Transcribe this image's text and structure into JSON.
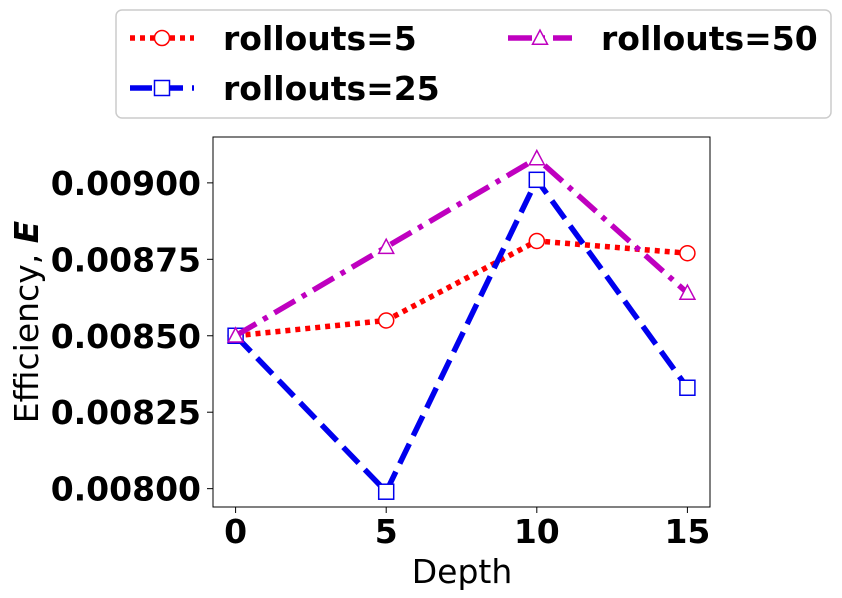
{
  "chart_data": {
    "type": "line",
    "xlabel": "Depth",
    "ylabel_prefix": "Efficiency, ",
    "ylabel_symbol": "E",
    "x": [
      0,
      5,
      10,
      15
    ],
    "xticks": [
      "0",
      "5",
      "10",
      "15"
    ],
    "yticks": [
      "0.00800",
      "0.00825",
      "0.00850",
      "0.00875",
      "0.00900"
    ],
    "ytick_values": [
      0.008,
      0.00825,
      0.0085,
      0.00875,
      0.009
    ],
    "xlim": [
      -0.75,
      15.75
    ],
    "ylim": [
      0.00794,
      0.00915
    ],
    "grid": false,
    "legend_position": "above the plot, two columns",
    "series": [
      {
        "name": "rollouts=5",
        "color": "#ff0000",
        "marker": "circle",
        "line_style": "dotted",
        "values": [
          0.0085,
          0.00855,
          0.00881,
          0.00877
        ]
      },
      {
        "name": "rollouts=25",
        "color": "#0000ee",
        "marker": "square",
        "line_style": "dashed",
        "values": [
          0.0085,
          0.00799,
          0.00901,
          0.00833
        ]
      },
      {
        "name": "rollouts=50",
        "color": "#bf00bf",
        "marker": "triangle",
        "line_style": "dash-dot",
        "values": [
          0.0085,
          0.00879,
          0.00908,
          0.00864
        ]
      }
    ]
  }
}
